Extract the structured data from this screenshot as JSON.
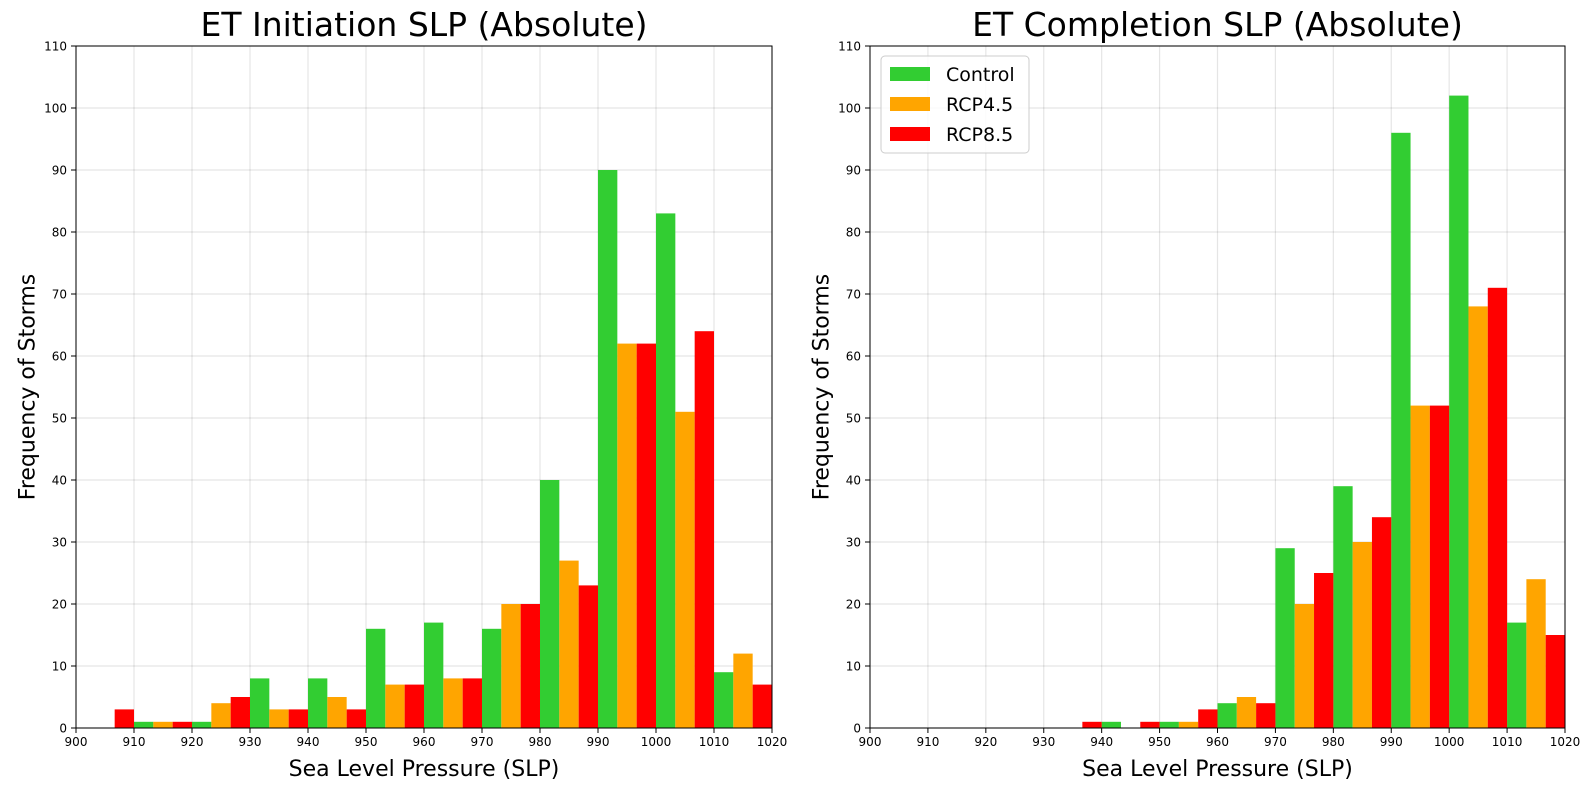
{
  "chart_data": [
    {
      "type": "bar",
      "title": "ET Initiation SLP (Absolute)",
      "xlabel": "Sea Level Pressure (SLP)",
      "ylabel": "Frequency of Storms",
      "xlim": [
        900,
        1020
      ],
      "ylim": [
        0,
        110
      ],
      "xticks": [
        900,
        910,
        920,
        930,
        940,
        950,
        960,
        970,
        980,
        990,
        1000,
        1010,
        1020
      ],
      "yticks": [
        0,
        10,
        20,
        30,
        40,
        50,
        60,
        70,
        80,
        90,
        100,
        110
      ],
      "grid": true,
      "legend": null,
      "bins": [
        900,
        910,
        920,
        930,
        940,
        950,
        960,
        970,
        980,
        990,
        1000,
        1010
      ],
      "bin_width": 10,
      "series": [
        {
          "name": "Control",
          "color": "#32CD32",
          "values": [
            0,
            1,
            1,
            8,
            8,
            16,
            17,
            16,
            40,
            90,
            83,
            9
          ]
        },
        {
          "name": "RCP4.5",
          "color": "#FFA500",
          "values": [
            0,
            1,
            4,
            3,
            5,
            7,
            8,
            20,
            27,
            62,
            51,
            12
          ]
        },
        {
          "name": "RCP8.5",
          "color": "#FF0000",
          "values": [
            3,
            1,
            5,
            3,
            3,
            7,
            8,
            20,
            23,
            62,
            64,
            7
          ]
        }
      ]
    },
    {
      "type": "bar",
      "title": "ET Completion SLP (Absolute)",
      "xlabel": "Sea Level Pressure (SLP)",
      "ylabel": "Frequency of Storms",
      "xlim": [
        900,
        1020
      ],
      "ylim": [
        0,
        110
      ],
      "xticks": [
        900,
        910,
        920,
        930,
        940,
        950,
        960,
        970,
        980,
        990,
        1000,
        1010,
        1020
      ],
      "yticks": [
        0,
        10,
        20,
        30,
        40,
        50,
        60,
        70,
        80,
        90,
        100,
        110
      ],
      "grid": true,
      "legend": "top-left",
      "bins": [
        900,
        910,
        920,
        930,
        940,
        950,
        960,
        970,
        980,
        990,
        1000,
        1010
      ],
      "bin_width": 10,
      "series": [
        {
          "name": "Control",
          "color": "#32CD32",
          "values": [
            0,
            0,
            0,
            0,
            1,
            1,
            4,
            29,
            39,
            96,
            102,
            17
          ]
        },
        {
          "name": "RCP4.5",
          "color": "#FFA500",
          "values": [
            0,
            0,
            0,
            0,
            0,
            1,
            5,
            20,
            30,
            52,
            68,
            24
          ]
        },
        {
          "name": "RCP8.5",
          "color": "#FF0000",
          "values": [
            0,
            0,
            0,
            1,
            1,
            3,
            4,
            25,
            34,
            52,
            71,
            15
          ]
        }
      ]
    }
  ]
}
